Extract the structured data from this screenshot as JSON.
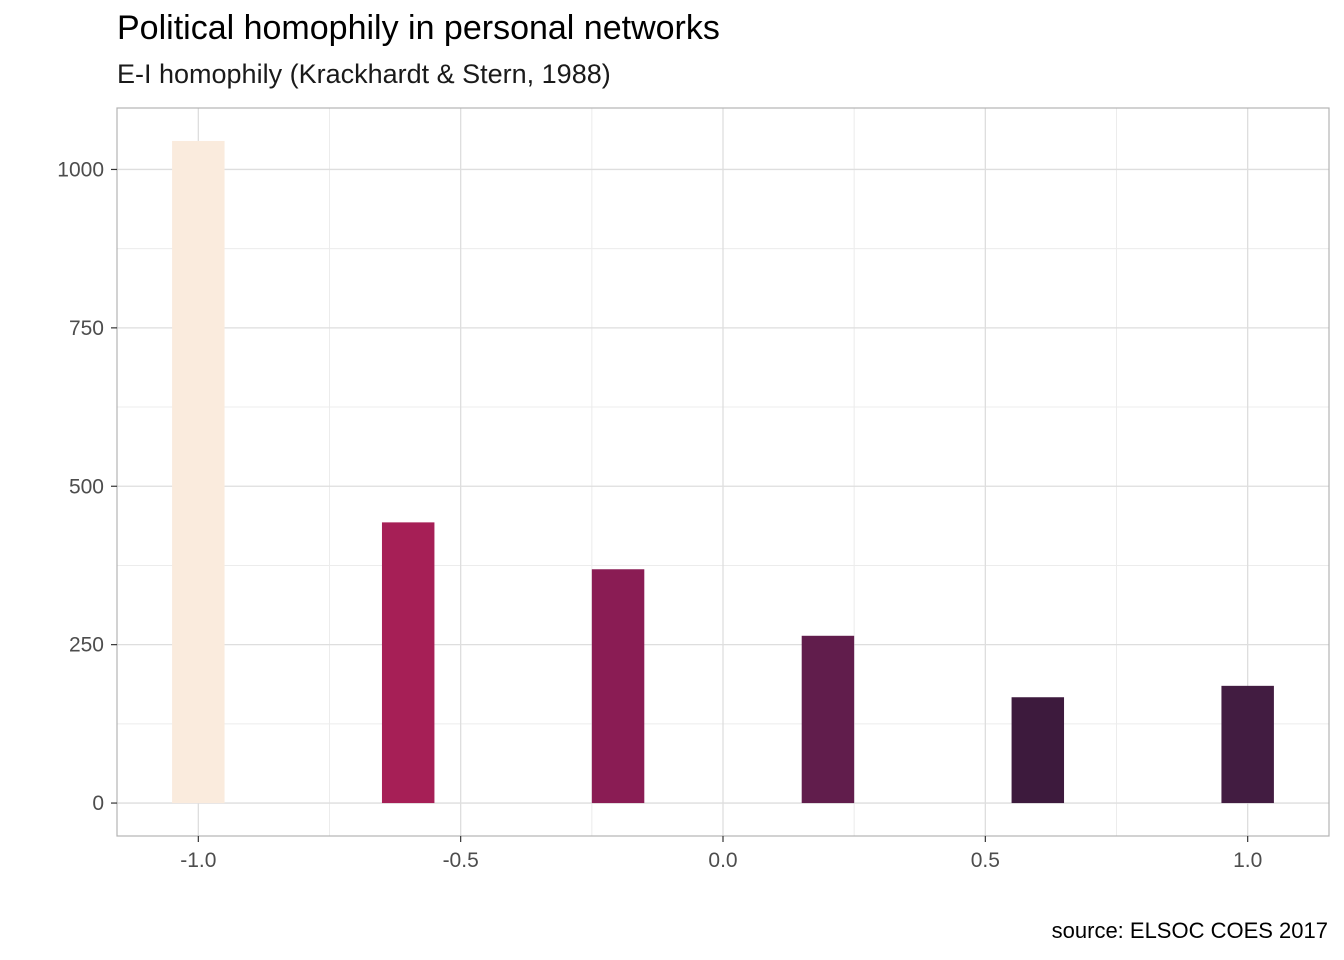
{
  "chart_data": {
    "type": "bar",
    "title": "Political homophily in personal networks",
    "subtitle": "E-I homophily (Krackhardt & Stern, 1988)",
    "caption": "source: ELSOC COES 2017",
    "xlabel": "",
    "ylabel": "",
    "x": [
      -1.0,
      -0.6,
      -0.2,
      0.2,
      0.6,
      1.0
    ],
    "values": [
      1045,
      443,
      369,
      264,
      167,
      185
    ],
    "colors": [
      "#FAEBDD",
      "#A61F56",
      "#8A1C54",
      "#611D4C",
      "#3D1A3D",
      "#421C41"
    ],
    "bar_width": 0.1,
    "xlim": [
      -1.155,
      1.155
    ],
    "ylim": [
      -52,
      1097
    ],
    "x_ticks": [
      -1.0,
      -0.5,
      0.0,
      0.5,
      1.0
    ],
    "x_tick_labels": [
      "-1.0",
      "-0.5",
      "0.0",
      "0.5",
      "1.0"
    ],
    "y_ticks": [
      0,
      250,
      500,
      750,
      1000
    ],
    "y_tick_labels": [
      "0",
      "250",
      "500",
      "750",
      "1000"
    ],
    "grid": true,
    "legend": "none"
  }
}
